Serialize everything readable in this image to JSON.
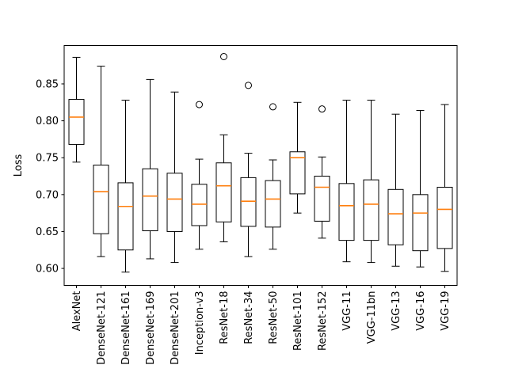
{
  "figure": {
    "background": "#ffffff"
  },
  "colors": {
    "box_edge": "#000000",
    "median_line": "#ff7f0e",
    "tick_text": "#000000",
    "axis_frame": "#000000"
  },
  "chart_data": {
    "type": "boxplot",
    "title": "",
    "xlabel": "",
    "ylabel": "Loss",
    "ylim": [
      0.577,
      0.902
    ],
    "yticks": [
      "0.60",
      "0.65",
      "0.70",
      "0.75",
      "0.80",
      "0.85"
    ],
    "grid": false,
    "legend": "none",
    "categories": [
      "AlexNet",
      "DenseNet-121",
      "DenseNet-161",
      "DenseNet-169",
      "DenseNet-201",
      "Inception-v3",
      "ResNet-18",
      "ResNet-34",
      "ResNet-50",
      "ResNet-101",
      "ResNet-152",
      "VGG-11",
      "VGG-11bn",
      "VGG-13",
      "VGG-16",
      "VGG-19"
    ],
    "boxes": [
      {
        "label": "AlexNet",
        "whislo": 0.744,
        "q1": 0.768,
        "med": 0.805,
        "q3": 0.829,
        "whishi": 0.886,
        "fliers": []
      },
      {
        "label": "DenseNet-121",
        "whislo": 0.616,
        "q1": 0.647,
        "med": 0.704,
        "q3": 0.74,
        "whishi": 0.874,
        "fliers": []
      },
      {
        "label": "DenseNet-161",
        "whislo": 0.595,
        "q1": 0.625,
        "med": 0.684,
        "q3": 0.716,
        "whishi": 0.828,
        "fliers": []
      },
      {
        "label": "DenseNet-169",
        "whislo": 0.613,
        "q1": 0.651,
        "med": 0.698,
        "q3": 0.735,
        "whishi": 0.856,
        "fliers": []
      },
      {
        "label": "DenseNet-201",
        "whislo": 0.608,
        "q1": 0.65,
        "med": 0.694,
        "q3": 0.729,
        "whishi": 0.839,
        "fliers": []
      },
      {
        "label": "Inception-v3",
        "whislo": 0.626,
        "q1": 0.658,
        "med": 0.687,
        "q3": 0.714,
        "whishi": 0.748,
        "fliers": [
          0.822
        ]
      },
      {
        "label": "ResNet-18",
        "whislo": 0.636,
        "q1": 0.663,
        "med": 0.712,
        "q3": 0.743,
        "whishi": 0.781,
        "fliers": [
          0.887
        ]
      },
      {
        "label": "ResNet-34",
        "whislo": 0.616,
        "q1": 0.657,
        "med": 0.691,
        "q3": 0.723,
        "whishi": 0.756,
        "fliers": [
          0.848
        ]
      },
      {
        "label": "ResNet-50",
        "whislo": 0.626,
        "q1": 0.656,
        "med": 0.694,
        "q3": 0.719,
        "whishi": 0.747,
        "fliers": [
          0.819
        ]
      },
      {
        "label": "ResNet-101",
        "whislo": 0.675,
        "q1": 0.701,
        "med": 0.75,
        "q3": 0.758,
        "whishi": 0.825,
        "fliers": []
      },
      {
        "label": "ResNet-152",
        "whislo": 0.641,
        "q1": 0.664,
        "med": 0.71,
        "q3": 0.725,
        "whishi": 0.751,
        "fliers": [
          0.816
        ]
      },
      {
        "label": "VGG-11",
        "whislo": 0.609,
        "q1": 0.638,
        "med": 0.685,
        "q3": 0.715,
        "whishi": 0.828,
        "fliers": []
      },
      {
        "label": "VGG-11bn",
        "whislo": 0.608,
        "q1": 0.638,
        "med": 0.687,
        "q3": 0.72,
        "whishi": 0.828,
        "fliers": []
      },
      {
        "label": "VGG-13",
        "whislo": 0.603,
        "q1": 0.632,
        "med": 0.674,
        "q3": 0.707,
        "whishi": 0.809,
        "fliers": []
      },
      {
        "label": "VGG-16",
        "whislo": 0.602,
        "q1": 0.624,
        "med": 0.675,
        "q3": 0.7,
        "whishi": 0.814,
        "fliers": []
      },
      {
        "label": "VGG-19",
        "whislo": 0.596,
        "q1": 0.627,
        "med": 0.68,
        "q3": 0.71,
        "whishi": 0.822,
        "fliers": []
      }
    ]
  }
}
